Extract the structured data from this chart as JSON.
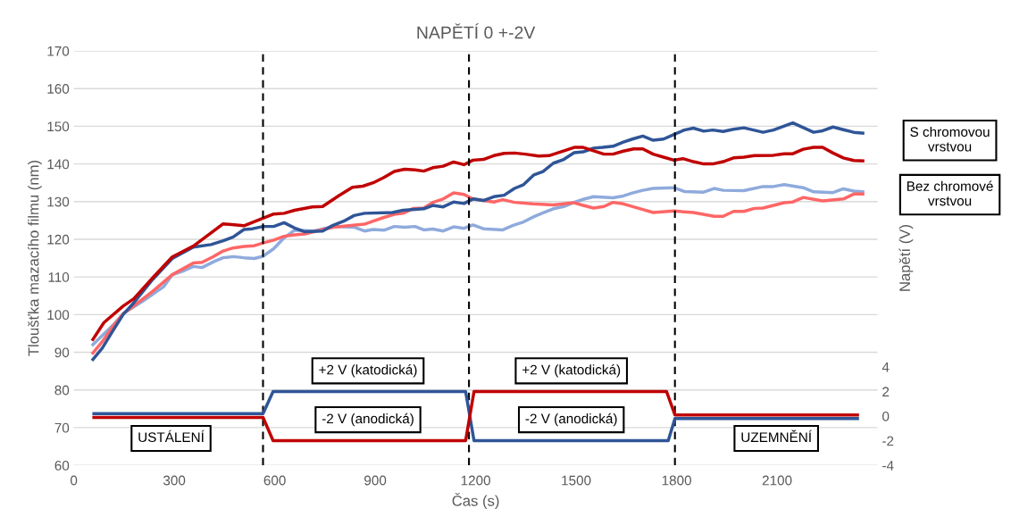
{
  "chart_data": {
    "type": "line",
    "title": "NAPĚTÍ 0 +-2V",
    "xlabel": "Čas (s)",
    "ylabel": "Tloušťka mazacího filmu (nm)",
    "y2label": "Napětí (V)",
    "xlim": [
      0,
      2400
    ],
    "xticks": [
      0,
      300,
      600,
      900,
      1200,
      1500,
      1800,
      2100
    ],
    "ylim": [
      60,
      170
    ],
    "yticks": [
      60,
      70,
      80,
      90,
      100,
      110,
      120,
      130,
      140,
      150,
      160,
      170
    ],
    "y2lim": [
      -4,
      29.7
    ],
    "y2ticks": [
      -4,
      -2,
      0,
      2,
      4
    ],
    "grid": "y",
    "legend": false,
    "marker": "none",
    "line_style": "solid",
    "series": [
      {
        "color": "#8faadc",
        "x": [
          57,
          116,
          148,
          205,
          268,
          294,
          330,
          357,
          383,
          419,
          446,
          476,
          508,
          539,
          565,
          597,
          628,
          659,
          717,
          774,
          837,
          868,
          894,
          926,
          957,
          988,
          1019,
          1045,
          1072,
          1103,
          1134,
          1165,
          1192,
          1223,
          1281,
          1312,
          1343,
          1374,
          1401,
          1432,
          1463,
          1494,
          1521,
          1552,
          1610,
          1641,
          1668,
          1699,
          1730,
          1792,
          1823,
          1881,
          1912,
          1939,
          2001,
          2058,
          2089,
          2121,
          2178,
          2209,
          2267,
          2298,
          2329,
          2356
        ],
        "values": [
          92,
          97.1,
          100.3,
          103.5,
          107.4,
          110.6,
          111.7,
          112.8,
          112.5,
          114.1,
          115.1,
          115.4,
          115.1,
          114.9,
          115.5,
          117.5,
          120.4,
          122.4,
          122.2,
          123.4,
          123.2,
          122.2,
          122.6,
          122.4,
          123.4,
          123.2,
          123.4,
          122.5,
          122.7,
          122.2,
          123.3,
          122.9,
          123.8,
          122.8,
          122.5,
          123.7,
          124.6,
          126,
          127,
          128.1,
          128.7,
          129.8,
          130.6,
          131.3,
          131,
          131.5,
          132.3,
          133,
          133.5,
          133.7,
          132.7,
          132.5,
          133.5,
          133,
          132.9,
          134,
          134,
          134.5,
          133.7,
          132.6,
          132.4,
          133.4,
          132.8,
          132.6
        ]
      },
      {
        "color": "#ff6666",
        "x": [
          57,
          85,
          116,
          148,
          179,
          236,
          294,
          357,
          383,
          415,
          446,
          476,
          508,
          539,
          565,
          597,
          628,
          659,
          690,
          743,
          774,
          868,
          894,
          926,
          957,
          983,
          1014,
          1045,
          1072,
          1103,
          1134,
          1165,
          1192,
          1223,
          1254,
          1281,
          1316,
          1370,
          1432,
          1494,
          1521,
          1552,
          1583,
          1610,
          1641,
          1699,
          1730,
          1792,
          1850,
          1912,
          1939,
          1970,
          2001,
          2032,
          2058,
          2121,
          2147,
          2178,
          2236,
          2298,
          2329,
          2356
        ],
        "values": [
          89.8,
          92.8,
          96.8,
          100.3,
          102.3,
          106.2,
          110.6,
          113.7,
          113.9,
          115.3,
          116.9,
          117.7,
          118.1,
          118.3,
          119,
          119.8,
          120.8,
          121.2,
          121.4,
          122.6,
          123.2,
          124,
          124.8,
          125.8,
          126.6,
          126.9,
          128.2,
          128.3,
          129.8,
          130.7,
          132.3,
          131.9,
          130.7,
          130.3,
          129.9,
          130.5,
          129.8,
          129.4,
          129.1,
          129.7,
          129,
          128.3,
          128.7,
          129.8,
          129.4,
          127.9,
          127.1,
          127.5,
          127.1,
          126.1,
          126.1,
          127.4,
          127.4,
          128.2,
          128.3,
          129.7,
          129.9,
          131.1,
          130.2,
          130.7,
          132,
          132
        ]
      },
      {
        "color": "#2f5597",
        "x": [
          57,
          85,
          116,
          148,
          179,
          236,
          294,
          357,
          410,
          446,
          476,
          508,
          534,
          565,
          597,
          628,
          659,
          690,
          743,
          774,
          806,
          837,
          868,
          952,
          983,
          1045,
          1072,
          1103,
          1134,
          1165,
          1192,
          1223,
          1254,
          1285,
          1316,
          1343,
          1374,
          1401,
          1432,
          1463,
          1494,
          1521,
          1552,
          1579,
          1610,
          1641,
          1668,
          1699,
          1730,
          1761,
          1792,
          1823,
          1850,
          1881,
          1908,
          1939,
          1970,
          2001,
          2058,
          2089,
          2147,
          2209,
          2236,
          2267,
          2298,
          2329,
          2356
        ],
        "values": [
          88.1,
          91.1,
          95.6,
          100.1,
          103.1,
          109.4,
          114.9,
          117.9,
          118.6,
          119.6,
          120.6,
          122.6,
          122.8,
          123.4,
          123.4,
          124.4,
          123,
          122,
          122.2,
          123.7,
          124.8,
          126.3,
          126.9,
          127.1,
          127.7,
          128.1,
          129,
          128.6,
          129.9,
          129.5,
          130.7,
          130.3,
          131.3,
          131.7,
          133.5,
          134.5,
          137.1,
          138,
          140.2,
          141.2,
          143,
          143.2,
          144.2,
          144.4,
          144.7,
          145.8,
          146.6,
          147.4,
          146.3,
          146.6,
          147.8,
          149,
          149.5,
          148.7,
          149,
          148.6,
          149.2,
          149.6,
          148.4,
          149,
          150.9,
          148.4,
          148.8,
          149.8,
          149.1,
          148.4,
          148.2
        ]
      },
      {
        "color": "#c00000",
        "x": [
          57,
          90,
          148,
          179,
          236,
          294,
          357,
          446,
          508,
          565,
          597,
          628,
          659,
          712,
          743,
          792,
          832,
          863,
          894,
          926,
          957,
          988,
          1019,
          1045,
          1072,
          1103,
          1134,
          1165,
          1192,
          1223,
          1254,
          1285,
          1316,
          1348,
          1388,
          1419,
          1468,
          1494,
          1521,
          1548,
          1583,
          1610,
          1641,
          1672,
          1699,
          1730,
          1761,
          1792,
          1819,
          1850,
          1881,
          1908,
          1939,
          1970,
          2001,
          2032,
          2089,
          2121,
          2147,
          2178,
          2209,
          2236,
          2267,
          2298,
          2329,
          2356
        ],
        "values": [
          93.4,
          97.9,
          102.3,
          104.2,
          109.8,
          115.3,
          118.2,
          124.1,
          123.6,
          125.6,
          126.7,
          126.9,
          127.7,
          128.6,
          128.7,
          131.6,
          133.8,
          134.1,
          135,
          136.4,
          138,
          138.6,
          138.4,
          138.1,
          139,
          139.4,
          140.5,
          139.8,
          141,
          141.2,
          142.2,
          142.8,
          142.9,
          142.6,
          142.1,
          142.2,
          143.6,
          144.4,
          144.4,
          143.6,
          142.6,
          142.6,
          143.4,
          144,
          144,
          142.6,
          141.8,
          141,
          141.4,
          140.6,
          140,
          140,
          140.6,
          141.6,
          141.8,
          142.2,
          142.3,
          142.7,
          142.7,
          143.9,
          144.4,
          144.4,
          142.9,
          141.6,
          140.9,
          140.8
        ]
      },
      {
        "color": "#2f5597",
        "axis": "y2",
        "x": [
          60,
          565,
          595,
          1170,
          1195,
          1775,
          1795,
          2340
        ],
        "values": [
          0.2,
          0.2,
          2,
          2,
          -2,
          -2,
          -0.2,
          -0.2
        ]
      },
      {
        "color": "#c00000",
        "axis": "y2",
        "x": [
          60,
          565,
          595,
          1170,
          1195,
          1770,
          1795,
          2340
        ],
        "values": [
          -0.1,
          -0.1,
          -2,
          -2,
          2,
          2,
          0.1,
          0.1
        ]
      }
    ],
    "ref_lines": [
      {
        "axis": "x",
        "value": 565,
        "color": "#000000",
        "line_style": "dashed"
      },
      {
        "axis": "x",
        "value": 1180,
        "color": "#000000",
        "line_style": "dashed"
      },
      {
        "axis": "x",
        "value": 1795,
        "color": "#000000",
        "line_style": "dashed"
      }
    ],
    "annotations": [
      "+2 V (katodická)",
      "-2 V (anodická)",
      "+2 V (katodická)",
      "-2 V (anodická)",
      "USTÁLENÍ",
      "UZEMNĚNÍ",
      "S chromovou\nvrstvou",
      "Bez chromové\nvrstvou"
    ]
  }
}
